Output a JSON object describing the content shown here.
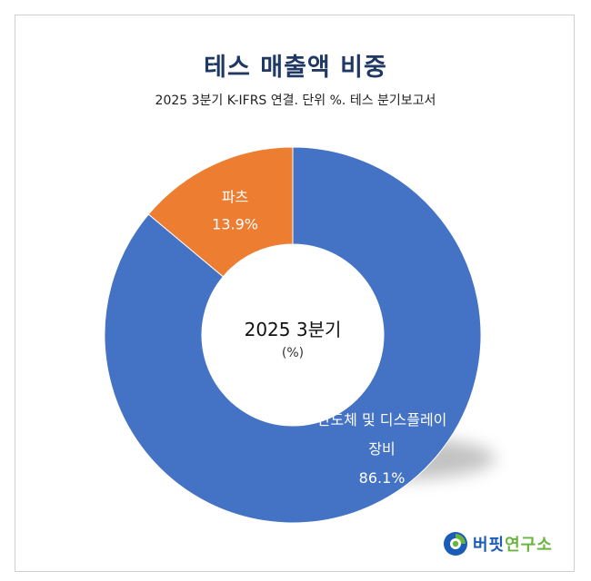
{
  "chart_data": {
    "type": "pie",
    "subtype": "donut",
    "title": "테스 매출액 비중",
    "subtitle": "2025 3분기 K-IFRS 연결. 단위 %. 테스 분기보고서",
    "center_label": "2025 3분기",
    "center_unit": "(%)",
    "slices": [
      {
        "label_lines": [
          "반도체 및 디스플레이",
          "장비"
        ],
        "value": 86.1,
        "value_label": "86.1%",
        "color": "#4472c4"
      },
      {
        "label_lines": [
          "파츠"
        ],
        "value": 13.9,
        "value_label": "13.9%",
        "color": "#ed7d31"
      }
    ]
  },
  "logo": {
    "part1": "버핏",
    "part2": "연구소",
    "colors": {
      "blue": "#1a5cb8",
      "green": "#6bb43f"
    }
  }
}
